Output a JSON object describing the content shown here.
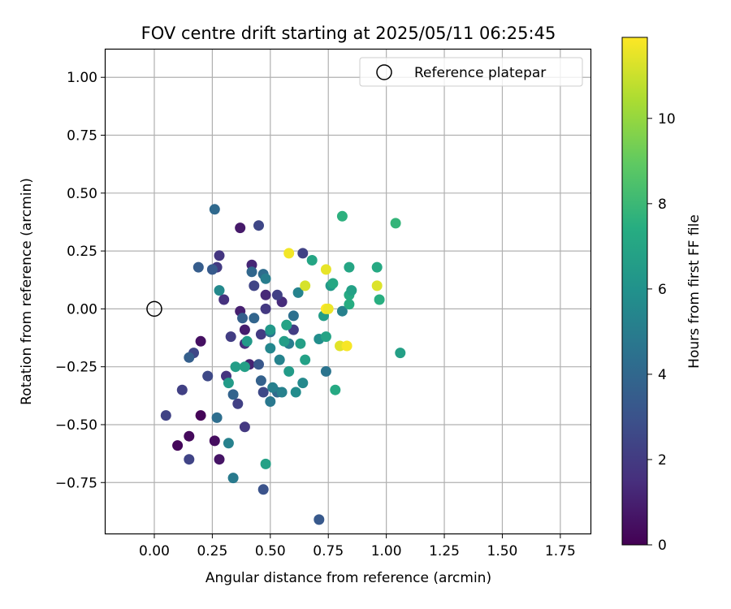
{
  "chart_data": {
    "type": "scatter",
    "title": "FOV centre drift starting at 2025/05/11 06:25:45",
    "xlabel": "Angular distance from reference (arcmin)",
    "ylabel": "Rotation from reference (arcmin)",
    "xlim": [
      -0.21,
      1.88
    ],
    "ylim": [
      -0.97,
      1.12
    ],
    "xticks": [
      "0.00",
      "0.25",
      "0.50",
      "0.75",
      "1.00",
      "1.25",
      "1.50",
      "1.75"
    ],
    "yticks": [
      "−0.75",
      "−0.50",
      "−0.25",
      "0.00",
      "0.25",
      "0.50",
      "0.75",
      "1.00"
    ],
    "grid": true,
    "legend": {
      "position": "top-right",
      "label": "Reference platepar"
    },
    "reference_point": {
      "x": 0.0,
      "y": 0.0
    },
    "colorbar": {
      "label": "Hours from first FF file",
      "range": [
        0,
        11.9
      ],
      "ticks": [
        "0",
        "2",
        "4",
        "6",
        "8",
        "10"
      ],
      "colormap": "viridis"
    },
    "points": [
      {
        "x": 0.1,
        "y": -0.59,
        "h": 0.2
      },
      {
        "x": 0.15,
        "y": -0.55,
        "h": 0.3
      },
      {
        "x": 0.2,
        "y": -0.46,
        "h": 0.1
      },
      {
        "x": 0.2,
        "y": -0.14,
        "h": 0.5
      },
      {
        "x": 0.26,
        "y": -0.57,
        "h": 0.4
      },
      {
        "x": 0.28,
        "y": -0.65,
        "h": 0.6
      },
      {
        "x": 0.37,
        "y": 0.35,
        "h": 0.8
      },
      {
        "x": 0.37,
        "y": -0.01,
        "h": 1.0
      },
      {
        "x": 0.39,
        "y": -0.09,
        "h": 0.9
      },
      {
        "x": 0.41,
        "y": -0.24,
        "h": 1.1
      },
      {
        "x": 0.42,
        "y": 0.19,
        "h": 1.2
      },
      {
        "x": 0.48,
        "y": 0.06,
        "h": 1.3
      },
      {
        "x": 0.55,
        "y": 0.03,
        "h": 1.4
      },
      {
        "x": 0.39,
        "y": -0.15,
        "h": 1.5
      },
      {
        "x": 0.3,
        "y": 0.04,
        "h": 1.6
      },
      {
        "x": 0.05,
        "y": -0.46,
        "h": 2.3
      },
      {
        "x": 0.12,
        "y": -0.35,
        "h": 2.2
      },
      {
        "x": 0.15,
        "y": -0.65,
        "h": 2.4
      },
      {
        "x": 0.17,
        "y": -0.19,
        "h": 2.5
      },
      {
        "x": 0.23,
        "y": -0.29,
        "h": 2.6
      },
      {
        "x": 0.28,
        "y": 0.23,
        "h": 1.8
      },
      {
        "x": 0.27,
        "y": 0.18,
        "h": 2.0
      },
      {
        "x": 0.31,
        "y": -0.29,
        "h": 1.7
      },
      {
        "x": 0.33,
        "y": -0.12,
        "h": 2.1
      },
      {
        "x": 0.36,
        "y": -0.41,
        "h": 2.2
      },
      {
        "x": 0.39,
        "y": -0.51,
        "h": 1.9
      },
      {
        "x": 0.43,
        "y": 0.1,
        "h": 2.4
      },
      {
        "x": 0.45,
        "y": 0.36,
        "h": 2.5
      },
      {
        "x": 0.46,
        "y": -0.11,
        "h": 2.0
      },
      {
        "x": 0.48,
        "y": 0.0,
        "h": 1.9
      },
      {
        "x": 0.47,
        "y": -0.36,
        "h": 2.6
      },
      {
        "x": 0.47,
        "y": -0.78,
        "h": 3.0
      },
      {
        "x": 0.53,
        "y": 0.06,
        "h": 2.2
      },
      {
        "x": 0.6,
        "y": -0.09,
        "h": 2.1
      },
      {
        "x": 0.64,
        "y": 0.24,
        "h": 2.3
      },
      {
        "x": 0.19,
        "y": 0.18,
        "h": 3.5
      },
      {
        "x": 0.15,
        "y": -0.21,
        "h": 3.6
      },
      {
        "x": 0.25,
        "y": 0.17,
        "h": 3.4
      },
      {
        "x": 0.26,
        "y": 0.43,
        "h": 4.1
      },
      {
        "x": 0.27,
        "y": -0.47,
        "h": 4.3
      },
      {
        "x": 0.34,
        "y": -0.37,
        "h": 3.8
      },
      {
        "x": 0.38,
        "y": -0.04,
        "h": 3.6
      },
      {
        "x": 0.42,
        "y": 0.16,
        "h": 4.0
      },
      {
        "x": 0.45,
        "y": -0.24,
        "h": 3.2
      },
      {
        "x": 0.46,
        "y": -0.31,
        "h": 3.7
      },
      {
        "x": 0.47,
        "y": 0.15,
        "h": 4.2
      },
      {
        "x": 0.43,
        "y": -0.04,
        "h": 3.9
      },
      {
        "x": 0.5,
        "y": -0.1,
        "h": 4.5
      },
      {
        "x": 0.53,
        "y": -0.36,
        "h": 4.1
      },
      {
        "x": 0.6,
        "y": -0.03,
        "h": 4.4
      },
      {
        "x": 0.74,
        "y": -0.27,
        "h": 4.6
      },
      {
        "x": 0.71,
        "y": -0.91,
        "h": 3.3
      },
      {
        "x": 0.28,
        "y": 0.08,
        "h": 5.6
      },
      {
        "x": 0.32,
        "y": -0.58,
        "h": 5.2
      },
      {
        "x": 0.34,
        "y": -0.73,
        "h": 4.9
      },
      {
        "x": 0.48,
        "y": 0.13,
        "h": 5.0
      },
      {
        "x": 0.5,
        "y": -0.4,
        "h": 4.8
      },
      {
        "x": 0.5,
        "y": -0.17,
        "h": 5.5
      },
      {
        "x": 0.51,
        "y": -0.34,
        "h": 5.1
      },
      {
        "x": 0.54,
        "y": -0.22,
        "h": 5.3
      },
      {
        "x": 0.55,
        "y": -0.36,
        "h": 5.2
      },
      {
        "x": 0.57,
        "y": -0.07,
        "h": 5.4
      },
      {
        "x": 0.58,
        "y": -0.15,
        "h": 5.0
      },
      {
        "x": 0.61,
        "y": -0.36,
        "h": 5.7
      },
      {
        "x": 0.62,
        "y": 0.07,
        "h": 5.3
      },
      {
        "x": 0.64,
        "y": -0.32,
        "h": 5.6
      },
      {
        "x": 0.71,
        "y": -0.13,
        "h": 5.8
      },
      {
        "x": 0.81,
        "y": -0.01,
        "h": 5.2
      },
      {
        "x": 0.32,
        "y": -0.32,
        "h": 6.5
      },
      {
        "x": 0.35,
        "y": -0.25,
        "h": 6.6
      },
      {
        "x": 0.39,
        "y": -0.25,
        "h": 6.7
      },
      {
        "x": 0.4,
        "y": -0.14,
        "h": 6.4
      },
      {
        "x": 0.48,
        "y": -0.67,
        "h": 6.8
      },
      {
        "x": 0.5,
        "y": -0.09,
        "h": 6.3
      },
      {
        "x": 0.56,
        "y": -0.14,
        "h": 6.6
      },
      {
        "x": 0.57,
        "y": -0.07,
        "h": 6.9
      },
      {
        "x": 0.58,
        "y": -0.27,
        "h": 6.5
      },
      {
        "x": 0.63,
        "y": -0.15,
        "h": 6.7
      },
      {
        "x": 0.65,
        "y": -0.22,
        "h": 6.8
      },
      {
        "x": 0.68,
        "y": 0.21,
        "h": 7.0
      },
      {
        "x": 0.73,
        "y": -0.03,
        "h": 6.6
      },
      {
        "x": 0.74,
        "y": -0.12,
        "h": 6.9
      },
      {
        "x": 0.76,
        "y": 0.1,
        "h": 6.4
      },
      {
        "x": 0.78,
        "y": -0.35,
        "h": 7.2
      },
      {
        "x": 0.77,
        "y": 0.11,
        "h": 7.1
      },
      {
        "x": 0.81,
        "y": 0.4,
        "h": 7.6
      },
      {
        "x": 0.84,
        "y": 0.06,
        "h": 7.3
      },
      {
        "x": 0.84,
        "y": 0.18,
        "h": 7.0
      },
      {
        "x": 0.85,
        "y": 0.08,
        "h": 6.8
      },
      {
        "x": 0.84,
        "y": 0.02,
        "h": 7.4
      },
      {
        "x": 0.96,
        "y": 0.18,
        "h": 7.2
      },
      {
        "x": 0.97,
        "y": 0.04,
        "h": 7.5
      },
      {
        "x": 1.04,
        "y": 0.37,
        "h": 7.8
      },
      {
        "x": 1.06,
        "y": -0.19,
        "h": 6.7
      },
      {
        "x": 0.58,
        "y": 0.24,
        "h": 11.7
      },
      {
        "x": 0.65,
        "y": 0.1,
        "h": 11.2
      },
      {
        "x": 0.74,
        "y": 0.17,
        "h": 11.5
      },
      {
        "x": 0.74,
        "y": 0.0,
        "h": 11.9
      },
      {
        "x": 0.75,
        "y": 0.0,
        "h": 11.6
      },
      {
        "x": 0.8,
        "y": -0.16,
        "h": 11.4
      },
      {
        "x": 0.83,
        "y": -0.16,
        "h": 11.8
      },
      {
        "x": 0.96,
        "y": 0.1,
        "h": 11.3
      }
    ]
  }
}
